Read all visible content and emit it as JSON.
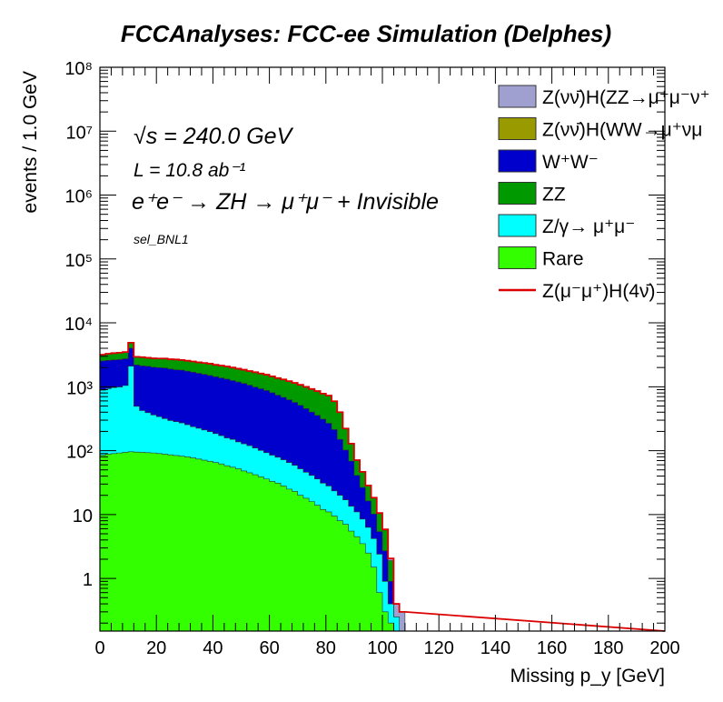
{
  "chart_data": {
    "type": "area",
    "stacked": true,
    "log_y": true,
    "title": "FCCAnalyses: FCC-ee Simulation (Delphes)",
    "xlabel": "Missing p_y [GeV]",
    "ylabel": "events / 1.0 GeV",
    "xlim": [
      0,
      200
    ],
    "ylim": [
      0.15,
      100000000
    ],
    "x_ticks": [
      "0",
      "20",
      "40",
      "60",
      "80",
      "100",
      "120",
      "140",
      "160",
      "180",
      "200"
    ],
    "y_ticks": [
      "1",
      "10",
      "10²",
      "10³",
      "10⁴",
      "10⁵",
      "10⁶",
      "10⁷",
      "10⁸"
    ],
    "annotations": {
      "energy": "√s = 240.0 GeV",
      "lumi": "L = 10.8 ab⁻¹",
      "process": "e⁺e⁻ → ZH → μ⁺μ⁻ + Invisible",
      "selection": "sel_BNL1"
    },
    "legend_position": "top-right",
    "legend": [
      {
        "label": "Z(νν̄)H(ZZ→μ⁺μ⁻ν⁺",
        "color": "#a0a0d0",
        "kind": "fill"
      },
      {
        "label": "Z(νν̄)H(WW→μ⁺νμ",
        "color": "#999900",
        "kind": "fill"
      },
      {
        "label": "W⁺W⁻",
        "color": "#0000cc",
        "kind": "fill"
      },
      {
        "label": "ZZ",
        "color": "#009900",
        "kind": "fill"
      },
      {
        "label": "Z/γ→ μ⁺μ⁻",
        "color": "#00ffff",
        "kind": "fill"
      },
      {
        "label": "Rare",
        "color": "#33ff00",
        "kind": "fill"
      },
      {
        "label": "Z(μ⁻μ⁺)H(4ν̄)",
        "color": "#dd0000",
        "kind": "line"
      }
    ],
    "x": [
      0,
      2,
      4,
      6,
      8,
      10,
      12,
      14,
      16,
      18,
      20,
      22,
      24,
      26,
      28,
      30,
      32,
      34,
      36,
      38,
      40,
      42,
      44,
      46,
      48,
      50,
      52,
      54,
      56,
      58,
      60,
      62,
      64,
      66,
      68,
      70,
      72,
      74,
      76,
      78,
      80,
      82,
      84,
      86,
      88,
      90,
      92,
      94,
      96,
      98,
      100,
      102,
      104,
      106
    ],
    "series": [
      {
        "name": "Rare",
        "color": "#33ff00",
        "values": [
          85,
          88,
          90,
          92,
          94,
          96,
          95,
          94,
          93,
          92,
          90,
          88,
          86,
          84,
          82,
          80,
          77,
          74,
          71,
          68,
          65,
          62,
          58,
          55,
          52,
          48,
          45,
          42,
          39,
          36,
          33,
          31,
          28,
          25,
          23,
          20,
          18,
          16,
          14,
          12,
          11,
          9.5,
          8,
          7,
          5.5,
          4.5,
          3.5,
          2.5,
          1.5,
          0.6,
          0.3,
          0.2,
          0.15,
          0.15
        ]
      },
      {
        "name": "Z/γ→ μ⁺μ⁻",
        "color": "#00ffff",
        "values": [
          800,
          850,
          880,
          900,
          950,
          2000,
          400,
          330,
          300,
          270,
          250,
          230,
          210,
          200,
          190,
          175,
          160,
          150,
          140,
          130,
          120,
          110,
          100,
          95,
          85,
          80,
          75,
          68,
          62,
          57,
          52,
          48,
          44,
          40,
          36,
          32,
          28,
          25,
          22,
          19,
          17,
          14,
          12,
          10,
          8,
          6.5,
          5,
          3.8,
          2.7,
          1.8,
          0.6,
          0.2,
          0.1,
          0
        ]
      },
      {
        "name": "W⁺W⁻",
        "color": "#0000cc",
        "values": [
          1650,
          1650,
          1660,
          1670,
          1700,
          1900,
          1700,
          1700,
          1700,
          1660,
          1650,
          1650,
          1600,
          1560,
          1550,
          1500,
          1450,
          1400,
          1350,
          1300,
          1250,
          1200,
          1160,
          1100,
          1050,
          1000,
          940,
          880,
          830,
          780,
          720,
          660,
          610,
          560,
          510,
          460,
          410,
          360,
          320,
          280,
          240,
          190,
          130,
          85,
          55,
          30,
          18,
          10,
          6,
          3,
          1.8,
          0.5,
          0,
          0
        ]
      },
      {
        "name": "ZZ",
        "color": "#009900",
        "values": [
          650,
          700,
          730,
          750,
          750,
          900,
          750,
          780,
          750,
          770,
          780,
          800,
          800,
          830,
          800,
          800,
          800,
          790,
          800,
          800,
          770,
          770,
          760,
          750,
          730,
          720,
          700,
          700,
          680,
          670,
          650,
          630,
          620,
          600,
          580,
          560,
          540,
          520,
          500,
          470,
          460,
          380,
          250,
          120,
          60,
          30,
          20,
          12,
          8,
          5,
          3,
          1,
          0,
          0
        ]
      },
      {
        "name": "Z(νν̄)H(ZZ→μ⁺μ⁻ν⁺",
        "color": "#a0a0d0",
        "values": [
          0.27,
          0.28,
          0.29,
          0.3,
          0.3,
          0.3,
          0.29,
          0.28,
          0.27,
          0.26,
          0.25,
          0.24,
          0.23,
          0.22,
          0.21,
          0.2,
          0.19,
          0.18,
          0.17,
          0.16,
          0.15,
          0.15,
          0.15,
          0.15,
          0.15,
          0.15,
          0.15,
          0.15,
          0.15,
          0.15,
          0.15,
          0.15,
          0.15,
          0.15,
          0.15,
          0.15,
          0.15,
          0.15,
          0.15,
          0.15,
          0.15,
          0.15,
          0.15,
          0.15,
          0.15,
          0.15,
          0.15,
          0.15,
          0.15,
          0.15,
          0.15,
          0.15,
          0.15,
          0.15
        ]
      }
    ]
  }
}
